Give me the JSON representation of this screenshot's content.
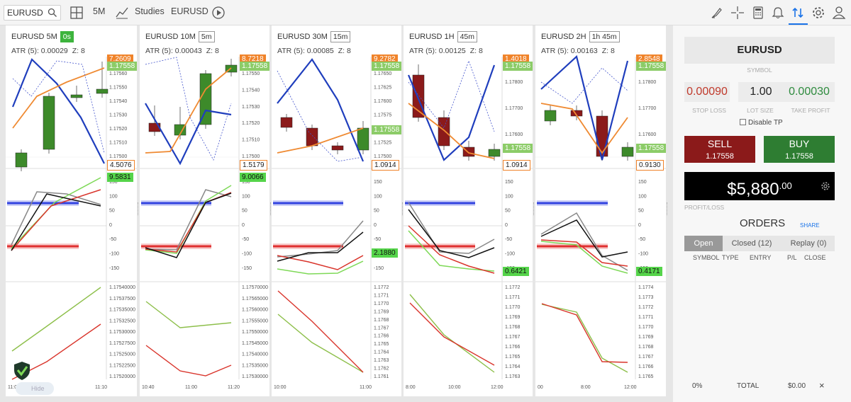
{
  "toolbar": {
    "symbol": "EURUSD",
    "timeframe": "5M",
    "studies": "Studies",
    "symbol2": "EURUSD"
  },
  "colors": {
    "sell": "#8b1a1a",
    "buy": "#2e7d32",
    "accent": "#1a73e8",
    "ma_blue": "#1f3ebd",
    "ma_orange": "#ef8a32",
    "osc_green": "#7ed957",
    "osc_red": "#d9342b",
    "candle_up": "#3d8a2a",
    "candle_down": "#8b1a1a"
  },
  "panels": [
    {
      "title": "EURUSD 5M",
      "tf": "0s",
      "tf_style": "g",
      "atr": "ATR (5): 0.00029",
      "z": "Z: 8",
      "price_ticks": [
        "1.17560",
        "1.17550",
        "1.17540",
        "1.17530",
        "1.17520",
        "1.17510",
        "1.17500"
      ],
      "tags_top": [
        "7.2609",
        "1.17558"
      ],
      "tag_mid": "4.5076",
      "tag_osc": "9.5831",
      "osc_ticks": [
        "150",
        "100",
        "50",
        "0",
        "-50",
        "-100",
        "-150"
      ],
      "bottom_ticks": [
        "1.17540000",
        "1.17537500",
        "1.17535000",
        "1.17532500",
        "1.17530000",
        "1.17527500",
        "1.17525000",
        "1.17522500",
        "1.17520000"
      ],
      "time_ticks": [
        "11:00",
        "11:10"
      ],
      "logo_label": "Hide"
    },
    {
      "title": "EURUSD 10M",
      "tf": "5m",
      "tf_style": "w",
      "atr": "ATR (5): 0.00043",
      "z": "Z: 8",
      "price_ticks": [
        "1.17550",
        "1.17540",
        "1.17530",
        "1.17520",
        "1.17510",
        "1.17500"
      ],
      "tags_top": [
        "8.7218",
        "1.17558"
      ],
      "tag_mid": "1.5179",
      "tag_osc": "9.0066",
      "osc_ticks": [
        "150",
        "100",
        "50",
        "0",
        "-50",
        "-100",
        "-150"
      ],
      "bottom_ticks": [
        "1.17570000",
        "1.17565000",
        "1.17560000",
        "1.17555000",
        "1.17550000",
        "1.17545000",
        "1.17540000",
        "1.17535000",
        "1.17530000"
      ],
      "time_ticks": [
        "10:40",
        "11:00",
        "11:20"
      ]
    },
    {
      "title": "EURUSD 30M",
      "tf": "15m",
      "tf_style": "w",
      "atr": "ATR (5): 0.00085",
      "z": "Z: 8",
      "price_ticks": [
        "1.17650",
        "1.17625",
        "1.17600",
        "1.17575",
        "1.17550",
        "1.17525",
        "1.17500"
      ],
      "tags_top": [
        "9.2782",
        "1.17558"
      ],
      "tag_mid": "1.0914",
      "tag_osc": "2.1880",
      "osc_ticks": [
        "150",
        "100",
        "50",
        "0",
        "-50",
        "-100",
        "-150"
      ],
      "bottom_ticks": [
        "1.1772",
        "1.1771",
        "1.1770",
        "1.1769",
        "1.1768",
        "1.1767",
        "1.1766",
        "1.1765",
        "1.1764",
        "1.1763",
        "1.1762",
        "1.1761"
      ],
      "time_ticks": [
        "10:00",
        "11:00"
      ]
    },
    {
      "title": "EURUSD 1H",
      "tf": "45m",
      "tf_style": "w",
      "atr": "ATR (5): 0.00125",
      "z": "Z: 8",
      "price_ticks": [
        "1.17800",
        "1.17700",
        "1.17600"
      ],
      "tags_top": [
        "1.4018",
        "1.17558"
      ],
      "tag_mid": "1.0914",
      "tag_osc": "0.6421",
      "osc_ticks": [
        "150",
        "100",
        "50",
        "0",
        "-50",
        "-100",
        "-150"
      ],
      "bottom_ticks": [
        "1.1772",
        "1.1771",
        "1.1770",
        "1.1769",
        "1.1768",
        "1.1767",
        "1.1766",
        "1.1765",
        "1.1764",
        "1.1763"
      ],
      "time_ticks": [
        "8:00",
        "10:00",
        "12:00"
      ]
    },
    {
      "title": "EURUSD 2H",
      "tf": "1h 45m",
      "tf_style": "w",
      "atr": "ATR (5): 0.00163",
      "z": "Z: 8",
      "price_ticks": [
        "1.17800",
        "1.17700",
        "1.17600"
      ],
      "tags_top": [
        "2.8548",
        "1.17558"
      ],
      "tag_mid": "0.9130",
      "tag_osc": "0.4171",
      "osc_ticks": [
        "150",
        "100",
        "50",
        "0",
        "-50",
        "-100",
        "-150"
      ],
      "bottom_ticks": [
        "1.1774",
        "1.1773",
        "1.1772",
        "1.1771",
        "1.1770",
        "1.1769",
        "1.1768",
        "1.1767",
        "1.1766",
        "1.1765"
      ],
      "time_ticks": [
        "00",
        "8:00",
        "12:00"
      ]
    }
  ],
  "sidebar": {
    "symbol": "EURUSD",
    "symbol_label": "SYMBOL",
    "stop_loss": "0.00090",
    "stop_loss_label": "STOP LOSS",
    "lot_size": "1.00",
    "lot_size_label": "LOT SIZE",
    "take_profit": "0.00030",
    "take_profit_label": "TAKE PROFIT",
    "disable_tp": "Disable TP",
    "sell_label": "SELL",
    "sell_price": "1.17558",
    "buy_label": "BUY",
    "buy_price": "1.17558",
    "pl_main": "$5,880",
    "pl_cents": ".00",
    "pl_label": "PROFIT/LOSS",
    "orders_title": "ORDERS",
    "share": "SHARE",
    "tab_open": "Open",
    "tab_closed": "Closed (12)",
    "tab_replay": "Replay (0)",
    "col_symbol": "SYMBOL",
    "col_type": "TYPE",
    "col_entry": "ENTRY",
    "col_pl": "P/L",
    "col_close": "CLOSE",
    "foot_pct": "0%",
    "foot_total": "TOTAL",
    "foot_amount": "$0.00",
    "foot_close": "×"
  }
}
